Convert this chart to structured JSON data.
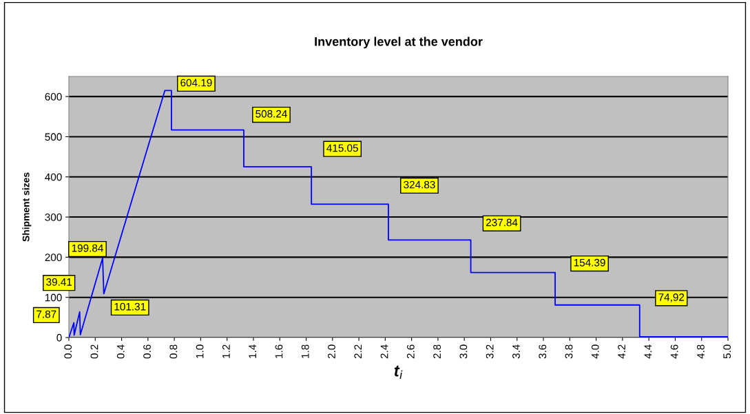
{
  "chart_data": {
    "type": "line",
    "title": "Inventory level at the vendor",
    "xlabel": "t$_{i}$",
    "ylabel": "Shipment sizes",
    "x": [
      0,
      0.038,
      0.04,
      0.082,
      0.087,
      0.256,
      0.265,
      0.728,
      0.778,
      0.778,
      1.327,
      1.327,
      1.84,
      1.84,
      2.424,
      2.424,
      3.049,
      3.049,
      3.689,
      3.689,
      4.33,
      4.33,
      5.0
    ],
    "series": [
      {
        "color": "#0000ff",
        "values": [
          0,
          37,
          6,
          64,
          7,
          198,
          109,
          615,
          615,
          517,
          517,
          425,
          425,
          332,
          332,
          243,
          243,
          162,
          162,
          81,
          81,
          2,
          2
        ]
      }
    ],
    "xlim": [
      0,
      5
    ],
    "ylim": [
      0,
      650
    ],
    "xticks": [
      {
        "value": 0,
        "label": "0.0"
      },
      {
        "value": 0.2,
        "label": "0.2"
      },
      {
        "value": 0.4,
        "label": "0.4"
      },
      {
        "value": 0.6,
        "label": "0.6"
      },
      {
        "value": 0.8,
        "label": "0.8"
      },
      {
        "value": 1.0,
        "label": "1.0"
      },
      {
        "value": 1.2,
        "label": "1.2"
      },
      {
        "value": 1.4,
        "label": "1.4"
      },
      {
        "value": 1.6,
        "label": "1.6"
      },
      {
        "value": 1.8,
        "label": "1.8"
      },
      {
        "value": 2.0,
        "label": "2.0"
      },
      {
        "value": 2.2,
        "label": "2.2"
      },
      {
        "value": 2.4,
        "label": "2.4"
      },
      {
        "value": 2.6,
        "label": "2.6"
      },
      {
        "value": 2.8,
        "label": "2.8"
      },
      {
        "value": 3.0,
        "label": "3.0"
      },
      {
        "value": 3.2,
        "label": "3.2"
      },
      {
        "value": 3.4,
        "label": "3.4"
      },
      {
        "value": 3.6,
        "label": "3.6"
      },
      {
        "value": 3.8,
        "label": "3.8"
      },
      {
        "value": 4.0,
        "label": "4.0"
      },
      {
        "value": 4.2,
        "label": "4.2"
      },
      {
        "value": 4.4,
        "label": "4.4"
      },
      {
        "value": 4.6,
        "label": "4.6"
      },
      {
        "value": 4.8,
        "label": "4.8"
      },
      {
        "value": 5.0,
        "label": "5.0"
      }
    ],
    "yticks": [
      0,
      100,
      200,
      300,
      400,
      500,
      600
    ],
    "grid": "y",
    "line_style": "solid",
    "marker": "none",
    "annotations": [
      {
        "text": "604.19",
        "x": 0.778,
        "y": 615
      },
      {
        "text": "508.24",
        "x": 1.327,
        "y": 517
      },
      {
        "text": "415.05",
        "x": 1.84,
        "y": 425
      },
      {
        "text": "324.83",
        "x": 2.424,
        "y": 332
      },
      {
        "text": "237.84",
        "x": 3.049,
        "y": 243
      },
      {
        "text": "154.39",
        "x": 3.689,
        "y": 162
      },
      {
        "text": "74,92",
        "x": 4.33,
        "y": 81
      },
      {
        "text": "199.84",
        "x": 0.256,
        "y": 198
      },
      {
        "text": "39.41",
        "x": 0.082,
        "y": 64
      },
      {
        "text": "7.87",
        "x": 0.038,
        "y": 37
      },
      {
        "text": "101.31",
        "x": 0.265,
        "y": 109
      }
    ]
  }
}
